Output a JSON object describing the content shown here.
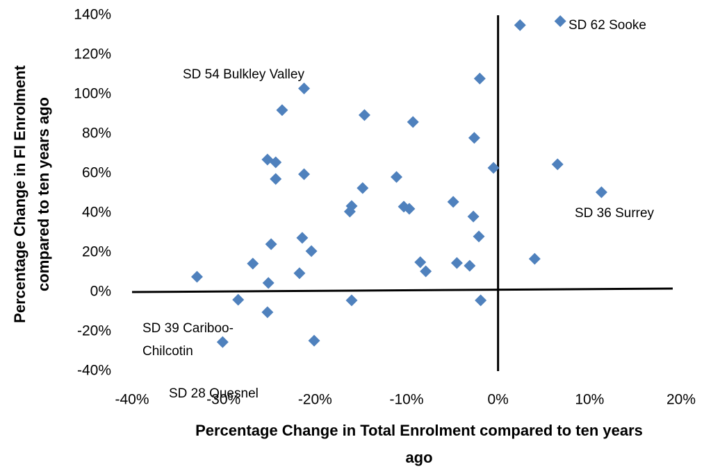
{
  "chart_data": {
    "type": "scatter",
    "x_label": [
      "Percentage Change in Total Enrolment compared to ten years",
      "ago"
    ],
    "y_label": [
      "Percentage Change in FI Enrolment",
      "compared to ten years ago"
    ],
    "annotations": [
      "SD 62 Sooke",
      "SD 54 Bulkley Valley",
      "SD 36 Surrey",
      "SD 39 Cariboo-",
      "Chilcotin",
      "SD 28 Quesnel"
    ],
    "color": "#4f81bd",
    "xlim": [
      -40,
      20
    ],
    "ylim": [
      -40,
      140
    ],
    "xticks": [
      {
        "value": -40,
        "label": "-40%"
      },
      {
        "value": -30,
        "label": "-30%"
      },
      {
        "value": -20,
        "label": "-20%"
      },
      {
        "value": -10,
        "label": "-10%"
      },
      {
        "value": 0,
        "label": "0%"
      },
      {
        "value": 10,
        "label": "10%"
      },
      {
        "value": 20,
        "label": "20%"
      }
    ],
    "yticks": [
      {
        "value": -40,
        "label": "-40%"
      },
      {
        "value": -20,
        "label": "-20%"
      },
      {
        "value": 0,
        "label": "0%"
      },
      {
        "value": 20,
        "label": "20%"
      },
      {
        "value": 40,
        "label": "40%"
      },
      {
        "value": 60,
        "label": "60%"
      },
      {
        "value": 80,
        "label": "80%"
      },
      {
        "value": 100,
        "label": "100%"
      },
      {
        "value": 120,
        "label": "120%"
      },
      {
        "value": 140,
        "label": "140%"
      }
    ],
    "x": [
      6.8,
      2.4,
      -21.2,
      -2.0,
      -23.6,
      -14.6,
      -9.3,
      -2.6,
      -25.2,
      -24.3,
      6.5,
      -0.5,
      -21.2,
      -11.1,
      -24.3,
      -14.8,
      11.3,
      -4.9,
      -16.0,
      -10.3,
      -9.7,
      -16.2,
      -2.7,
      -21.4,
      -2.1,
      -24.8,
      -20.4,
      4.0,
      -26.8,
      -8.5,
      -4.5,
      -3.1,
      -7.9,
      -21.7,
      -32.9,
      -25.1,
      -28.4,
      -16.0,
      -1.9,
      -25.2,
      -20.1,
      -30.1
    ],
    "y": [
      137,
      135,
      103,
      108,
      92,
      89.5,
      86,
      78,
      67,
      65.6,
      64.6,
      62.8,
      59.6,
      58.2,
      57.2,
      52.6,
      50.5,
      45.6,
      43.5,
      43.2,
      42.1,
      40.7,
      38.2,
      27.4,
      28.1,
      24.2,
      20.7,
      16.8,
      14.4,
      15.1,
      14.7,
      13.3,
      10.5,
      9.5,
      7.7,
      4.6,
      -3.9,
      -4.2,
      -4.2,
      -10.2,
      -24.6,
      -25.3
    ]
  }
}
